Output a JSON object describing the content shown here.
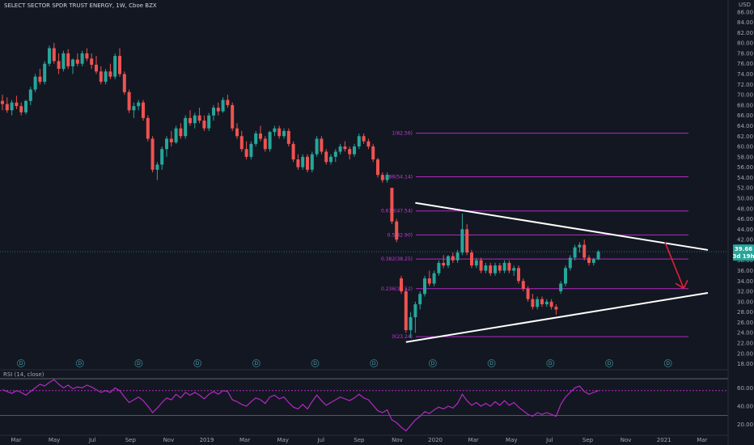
{
  "chart_data": {
    "type": "candlestick",
    "title": "SELECT SECTOR SPDR TRUST ENERGY, 1W, Cboe BZX",
    "currency": "USD",
    "x_ticks": [
      "Mar",
      "May",
      "Jul",
      "Sep",
      "Nov",
      "2019",
      "Mar",
      "May",
      "Jul",
      "Sep",
      "Nov",
      "2020",
      "Mar",
      "May",
      "Jul",
      "Sep",
      "Nov",
      "2021",
      "Mar"
    ],
    "y_ticks": [
      "86.00",
      "84.00",
      "82.00",
      "80.00",
      "78.00",
      "76.00",
      "74.00",
      "72.00",
      "70.00",
      "68.00",
      "66.00",
      "64.00",
      "62.00",
      "60.00",
      "58.00",
      "56.00",
      "54.00",
      "52.00",
      "50.00",
      "48.00",
      "46.00",
      "44.00",
      "42.00",
      "40.00",
      "38.00",
      "36.00",
      "34.00",
      "32.00",
      "30.00",
      "28.00",
      "26.00",
      "24.00",
      "22.00",
      "20.00",
      "18.00"
    ],
    "ylim": [
      17,
      88
    ],
    "last_price_label": "39.66",
    "countdown_label": "3d 19h",
    "fib_levels": [
      {
        "label": "1(62.56)",
        "value": 62.56
      },
      {
        "label": "0.786(54.14)",
        "value": 54.14
      },
      {
        "label": "0.618(47.54)",
        "value": 47.54
      },
      {
        "label": "0.5(42.90)",
        "value": 42.9
      },
      {
        "label": "0.382(38.25)",
        "value": 38.25
      },
      {
        "label": "0.236(32.52)",
        "value": 32.52
      },
      {
        "label": "0(23.24)",
        "value": 23.24
      }
    ],
    "candles": [
      {
        "o": 68.8,
        "h": 70.0,
        "l": 67.0,
        "c": 68.2
      },
      {
        "o": 68.2,
        "h": 69.5,
        "l": 66.5,
        "c": 67.0
      },
      {
        "o": 67.0,
        "h": 69.0,
        "l": 66.0,
        "c": 68.5
      },
      {
        "o": 68.5,
        "h": 69.8,
        "l": 67.2,
        "c": 67.8
      },
      {
        "o": 67.8,
        "h": 68.5,
        "l": 66.0,
        "c": 66.6
      },
      {
        "o": 66.6,
        "h": 69.0,
        "l": 66.2,
        "c": 68.8
      },
      {
        "o": 68.8,
        "h": 71.5,
        "l": 68.0,
        "c": 71.0
      },
      {
        "o": 71.0,
        "h": 74.0,
        "l": 70.5,
        "c": 73.5
      },
      {
        "o": 73.5,
        "h": 75.0,
        "l": 72.0,
        "c": 72.5
      },
      {
        "o": 72.5,
        "h": 76.5,
        "l": 72.0,
        "c": 76.0
      },
      {
        "o": 76.0,
        "h": 79.5,
        "l": 75.5,
        "c": 79.0
      },
      {
        "o": 79.0,
        "h": 80.0,
        "l": 76.0,
        "c": 76.5
      },
      {
        "o": 76.5,
        "h": 78.0,
        "l": 74.0,
        "c": 75.0
      },
      {
        "o": 75.0,
        "h": 78.5,
        "l": 74.5,
        "c": 78.0
      },
      {
        "o": 78.0,
        "h": 78.8,
        "l": 75.0,
        "c": 75.5
      },
      {
        "o": 75.5,
        "h": 77.0,
        "l": 74.0,
        "c": 76.8
      },
      {
        "o": 76.8,
        "h": 78.0,
        "l": 75.5,
        "c": 76.0
      },
      {
        "o": 76.0,
        "h": 78.5,
        "l": 75.5,
        "c": 78.0
      },
      {
        "o": 78.0,
        "h": 79.0,
        "l": 76.5,
        "c": 77.0
      },
      {
        "o": 77.0,
        "h": 78.0,
        "l": 75.0,
        "c": 75.8
      },
      {
        "o": 75.8,
        "h": 77.5,
        "l": 74.0,
        "c": 74.5
      },
      {
        "o": 74.5,
        "h": 75.5,
        "l": 72.0,
        "c": 72.5
      },
      {
        "o": 72.5,
        "h": 75.0,
        "l": 72.0,
        "c": 74.5
      },
      {
        "o": 74.5,
        "h": 76.0,
        "l": 73.0,
        "c": 73.5
      },
      {
        "o": 73.5,
        "h": 78.0,
        "l": 73.0,
        "c": 77.5
      },
      {
        "o": 77.5,
        "h": 79.0,
        "l": 73.5,
        "c": 74.0
      },
      {
        "o": 74.0,
        "h": 74.5,
        "l": 70.0,
        "c": 70.5
      },
      {
        "o": 70.5,
        "h": 71.0,
        "l": 66.5,
        "c": 67.0
      },
      {
        "o": 67.0,
        "h": 68.5,
        "l": 65.5,
        "c": 67.8
      },
      {
        "o": 67.8,
        "h": 69.0,
        "l": 67.0,
        "c": 68.5
      },
      {
        "o": 68.5,
        "h": 69.0,
        "l": 65.0,
        "c": 65.5
      },
      {
        "o": 65.5,
        "h": 66.0,
        "l": 61.0,
        "c": 61.5
      },
      {
        "o": 61.5,
        "h": 62.0,
        "l": 55.0,
        "c": 55.5
      },
      {
        "o": 55.5,
        "h": 57.0,
        "l": 53.5,
        "c": 56.5
      },
      {
        "o": 56.5,
        "h": 60.0,
        "l": 55.5,
        "c": 59.5
      },
      {
        "o": 59.5,
        "h": 62.0,
        "l": 58.0,
        "c": 61.5
      },
      {
        "o": 61.5,
        "h": 63.0,
        "l": 60.0,
        "c": 60.8
      },
      {
        "o": 60.8,
        "h": 64.0,
        "l": 60.5,
        "c": 63.5
      },
      {
        "o": 63.5,
        "h": 64.5,
        "l": 61.5,
        "c": 62.0
      },
      {
        "o": 62.0,
        "h": 66.0,
        "l": 61.5,
        "c": 65.5
      },
      {
        "o": 65.5,
        "h": 67.0,
        "l": 64.0,
        "c": 64.5
      },
      {
        "o": 64.5,
        "h": 66.5,
        "l": 63.5,
        "c": 66.0
      },
      {
        "o": 66.0,
        "h": 67.5,
        "l": 64.5,
        "c": 65.0
      },
      {
        "o": 65.0,
        "h": 66.0,
        "l": 63.0,
        "c": 63.5
      },
      {
        "o": 63.5,
        "h": 66.5,
        "l": 63.0,
        "c": 66.0
      },
      {
        "o": 66.0,
        "h": 68.0,
        "l": 65.0,
        "c": 67.5
      },
      {
        "o": 67.5,
        "h": 68.5,
        "l": 66.0,
        "c": 66.8
      },
      {
        "o": 66.8,
        "h": 69.5,
        "l": 66.5,
        "c": 69.0
      },
      {
        "o": 69.0,
        "h": 70.0,
        "l": 67.5,
        "c": 68.0
      },
      {
        "o": 68.0,
        "h": 68.5,
        "l": 63.0,
        "c": 63.5
      },
      {
        "o": 63.5,
        "h": 64.5,
        "l": 61.5,
        "c": 62.0
      },
      {
        "o": 62.0,
        "h": 63.0,
        "l": 59.0,
        "c": 59.5
      },
      {
        "o": 59.5,
        "h": 61.0,
        "l": 57.5,
        "c": 58.0
      },
      {
        "o": 58.0,
        "h": 61.0,
        "l": 57.5,
        "c": 60.5
      },
      {
        "o": 60.5,
        "h": 63.0,
        "l": 60.0,
        "c": 62.5
      },
      {
        "o": 62.5,
        "h": 64.0,
        "l": 61.0,
        "c": 61.5
      },
      {
        "o": 61.5,
        "h": 62.0,
        "l": 59.0,
        "c": 59.5
      },
      {
        "o": 59.5,
        "h": 63.0,
        "l": 59.0,
        "c": 62.8
      },
      {
        "o": 62.8,
        "h": 64.0,
        "l": 62.0,
        "c": 63.5
      },
      {
        "o": 63.5,
        "h": 64.0,
        "l": 61.5,
        "c": 62.0
      },
      {
        "o": 62.0,
        "h": 63.5,
        "l": 61.5,
        "c": 63.0
      },
      {
        "o": 63.0,
        "h": 63.5,
        "l": 60.0,
        "c": 60.5
      },
      {
        "o": 60.5,
        "h": 61.0,
        "l": 57.0,
        "c": 57.5
      },
      {
        "o": 57.5,
        "h": 58.5,
        "l": 55.5,
        "c": 56.0
      },
      {
        "o": 56.0,
        "h": 58.5,
        "l": 55.5,
        "c": 58.0
      },
      {
        "o": 58.0,
        "h": 58.5,
        "l": 55.0,
        "c": 55.5
      },
      {
        "o": 55.5,
        "h": 59.0,
        "l": 55.0,
        "c": 58.5
      },
      {
        "o": 58.5,
        "h": 62.0,
        "l": 58.0,
        "c": 61.5
      },
      {
        "o": 61.5,
        "h": 62.0,
        "l": 58.5,
        "c": 59.0
      },
      {
        "o": 59.0,
        "h": 59.5,
        "l": 56.5,
        "c": 57.0
      },
      {
        "o": 57.0,
        "h": 58.5,
        "l": 56.5,
        "c": 58.0
      },
      {
        "o": 58.0,
        "h": 59.5,
        "l": 57.0,
        "c": 59.0
      },
      {
        "o": 59.0,
        "h": 60.5,
        "l": 58.5,
        "c": 60.0
      },
      {
        "o": 60.0,
        "h": 61.0,
        "l": 59.0,
        "c": 59.5
      },
      {
        "o": 59.5,
        "h": 60.0,
        "l": 57.5,
        "c": 58.5
      },
      {
        "o": 58.5,
        "h": 60.5,
        "l": 58.0,
        "c": 60.0
      },
      {
        "o": 60.0,
        "h": 62.5,
        "l": 59.5,
        "c": 62.0
      },
      {
        "o": 62.0,
        "h": 62.5,
        "l": 60.5,
        "c": 61.0
      },
      {
        "o": 61.0,
        "h": 61.5,
        "l": 59.5,
        "c": 60.0
      },
      {
        "o": 60.0,
        "h": 60.5,
        "l": 57.0,
        "c": 57.5
      },
      {
        "o": 57.5,
        "h": 57.8,
        "l": 54.0,
        "c": 54.5
      },
      {
        "o": 54.5,
        "h": 55.0,
        "l": 53.0,
        "c": 53.5
      },
      {
        "o": 53.5,
        "h": 55.0,
        "l": 53.0,
        "c": 54.5
      },
      {
        "o": 52.0,
        "h": 52.0,
        "l": 45.0,
        "c": 45.5
      },
      {
        "o": 45.5,
        "h": 46.0,
        "l": 41.5,
        "c": 42.0
      },
      {
        "o": 34.5,
        "h": 35.0,
        "l": 31.5,
        "c": 32.0
      },
      {
        "o": 32.0,
        "h": 32.5,
        "l": 24.0,
        "c": 24.5
      },
      {
        "o": 24.5,
        "h": 28.0,
        "l": 23.0,
        "c": 27.0
      },
      {
        "o": 27.0,
        "h": 30.0,
        "l": 24.0,
        "c": 29.5
      },
      {
        "o": 29.5,
        "h": 32.0,
        "l": 28.5,
        "c": 31.5
      },
      {
        "o": 31.5,
        "h": 35.0,
        "l": 31.0,
        "c": 34.5
      },
      {
        "o": 34.5,
        "h": 36.0,
        "l": 33.0,
        "c": 33.5
      },
      {
        "o": 33.5,
        "h": 36.0,
        "l": 33.0,
        "c": 35.5
      },
      {
        "o": 35.5,
        "h": 38.0,
        "l": 35.0,
        "c": 37.5
      },
      {
        "o": 37.5,
        "h": 39.0,
        "l": 36.5,
        "c": 37.0
      },
      {
        "o": 37.0,
        "h": 39.0,
        "l": 36.5,
        "c": 38.8
      },
      {
        "o": 38.8,
        "h": 39.5,
        "l": 37.5,
        "c": 38.0
      },
      {
        "o": 38.0,
        "h": 40.0,
        "l": 37.5,
        "c": 39.5
      },
      {
        "o": 39.5,
        "h": 47.0,
        "l": 39.0,
        "c": 44.0
      },
      {
        "o": 44.0,
        "h": 45.0,
        "l": 39.0,
        "c": 39.5
      },
      {
        "o": 39.5,
        "h": 40.0,
        "l": 36.5,
        "c": 37.0
      },
      {
        "o": 37.0,
        "h": 38.5,
        "l": 36.5,
        "c": 38.0
      },
      {
        "o": 38.0,
        "h": 38.5,
        "l": 35.5,
        "c": 36.0
      },
      {
        "o": 36.0,
        "h": 37.5,
        "l": 35.5,
        "c": 37.0
      },
      {
        "o": 37.0,
        "h": 37.5,
        "l": 35.0,
        "c": 35.5
      },
      {
        "o": 35.5,
        "h": 37.5,
        "l": 35.0,
        "c": 37.0
      },
      {
        "o": 37.0,
        "h": 37.5,
        "l": 35.5,
        "c": 36.0
      },
      {
        "o": 36.0,
        "h": 38.0,
        "l": 35.5,
        "c": 37.5
      },
      {
        "o": 37.5,
        "h": 38.0,
        "l": 35.5,
        "c": 36.0
      },
      {
        "o": 36.0,
        "h": 37.0,
        "l": 35.0,
        "c": 36.5
      },
      {
        "o": 36.5,
        "h": 37.0,
        "l": 33.5,
        "c": 34.0
      },
      {
        "o": 34.0,
        "h": 34.5,
        "l": 32.0,
        "c": 32.5
      },
      {
        "o": 32.5,
        "h": 33.0,
        "l": 30.0,
        "c": 30.5
      },
      {
        "o": 30.5,
        "h": 31.5,
        "l": 28.5,
        "c": 29.0
      },
      {
        "o": 29.0,
        "h": 31.0,
        "l": 28.5,
        "c": 30.5
      },
      {
        "o": 30.5,
        "h": 31.0,
        "l": 29.0,
        "c": 29.5
      },
      {
        "o": 29.5,
        "h": 30.5,
        "l": 29.0,
        "c": 30.0
      },
      {
        "o": 30.0,
        "h": 30.5,
        "l": 28.5,
        "c": 29.0
      },
      {
        "o": 29.0,
        "h": 29.5,
        "l": 27.5,
        "c": 28.5
      },
      {
        "o": 32.0,
        "h": 34.0,
        "l": 31.5,
        "c": 33.5
      },
      {
        "o": 33.5,
        "h": 37.0,
        "l": 33.0,
        "c": 36.5
      },
      {
        "o": 36.5,
        "h": 39.0,
        "l": 36.0,
        "c": 38.5
      },
      {
        "o": 38.5,
        "h": 41.0,
        "l": 38.0,
        "c": 40.5
      },
      {
        "o": 40.5,
        "h": 41.5,
        "l": 39.5,
        "c": 41.0
      },
      {
        "o": 41.0,
        "h": 42.0,
        "l": 38.0,
        "c": 38.5
      },
      {
        "o": 38.5,
        "h": 39.0,
        "l": 37.0,
        "c": 37.5
      },
      {
        "o": 37.5,
        "h": 38.5,
        "l": 37.0,
        "c": 38.2
      },
      {
        "o": 38.2,
        "h": 40.0,
        "l": 38.0,
        "c": 39.66
      }
    ],
    "trendlines": [
      {
        "label": "upper",
        "p1": {
          "i": 88,
          "v": 49.1
        },
        "p2": {
          "i": 130,
          "v": 40.0
        }
      },
      {
        "label": "lower",
        "p1": {
          "i": 86,
          "v": 22.2
        },
        "p2": {
          "i": 130,
          "v": 31.7
        }
      }
    ],
    "projection_arrow": {
      "from": {
        "i": 123,
        "v": 41.5
      },
      "to": {
        "i": 125,
        "v": 32.6
      }
    },
    "dividends": {
      "label": "D",
      "indices": [
        4,
        16,
        29,
        42,
        54,
        67,
        80,
        92,
        105,
        117,
        129,
        141
      ]
    },
    "rsi": {
      "label": "RSI (14, close)",
      "levels": [
        70,
        30
      ],
      "ticks": [
        "60.00",
        "40.00",
        "20.00"
      ],
      "ylim": [
        10,
        78
      ],
      "current": 57,
      "values": [
        58,
        56,
        54,
        57,
        55,
        52,
        56,
        60,
        64,
        62,
        66,
        69,
        64,
        60,
        63,
        59,
        61,
        60,
        63,
        61,
        58,
        55,
        57,
        55,
        60,
        57,
        50,
        44,
        47,
        50,
        46,
        40,
        33,
        38,
        44,
        49,
        47,
        53,
        49,
        55,
        52,
        55,
        52,
        48,
        53,
        56,
        53,
        57,
        56,
        47,
        45,
        42,
        40,
        45,
        49,
        47,
        43,
        50,
        52,
        48,
        50,
        44,
        39,
        37,
        42,
        37,
        45,
        52,
        46,
        41,
        44,
        47,
        50,
        48,
        46,
        49,
        53,
        49,
        47,
        41,
        35,
        33,
        36,
        25,
        22,
        17,
        13,
        19,
        25,
        29,
        34,
        32,
        36,
        39,
        37,
        40,
        38,
        43,
        53,
        46,
        41,
        44,
        40,
        43,
        40,
        45,
        41,
        46,
        41,
        44,
        39,
        35,
        31,
        29,
        33,
        31,
        33,
        31,
        29,
        42,
        50,
        55,
        60,
        62,
        56,
        53,
        55,
        57
      ]
    }
  }
}
